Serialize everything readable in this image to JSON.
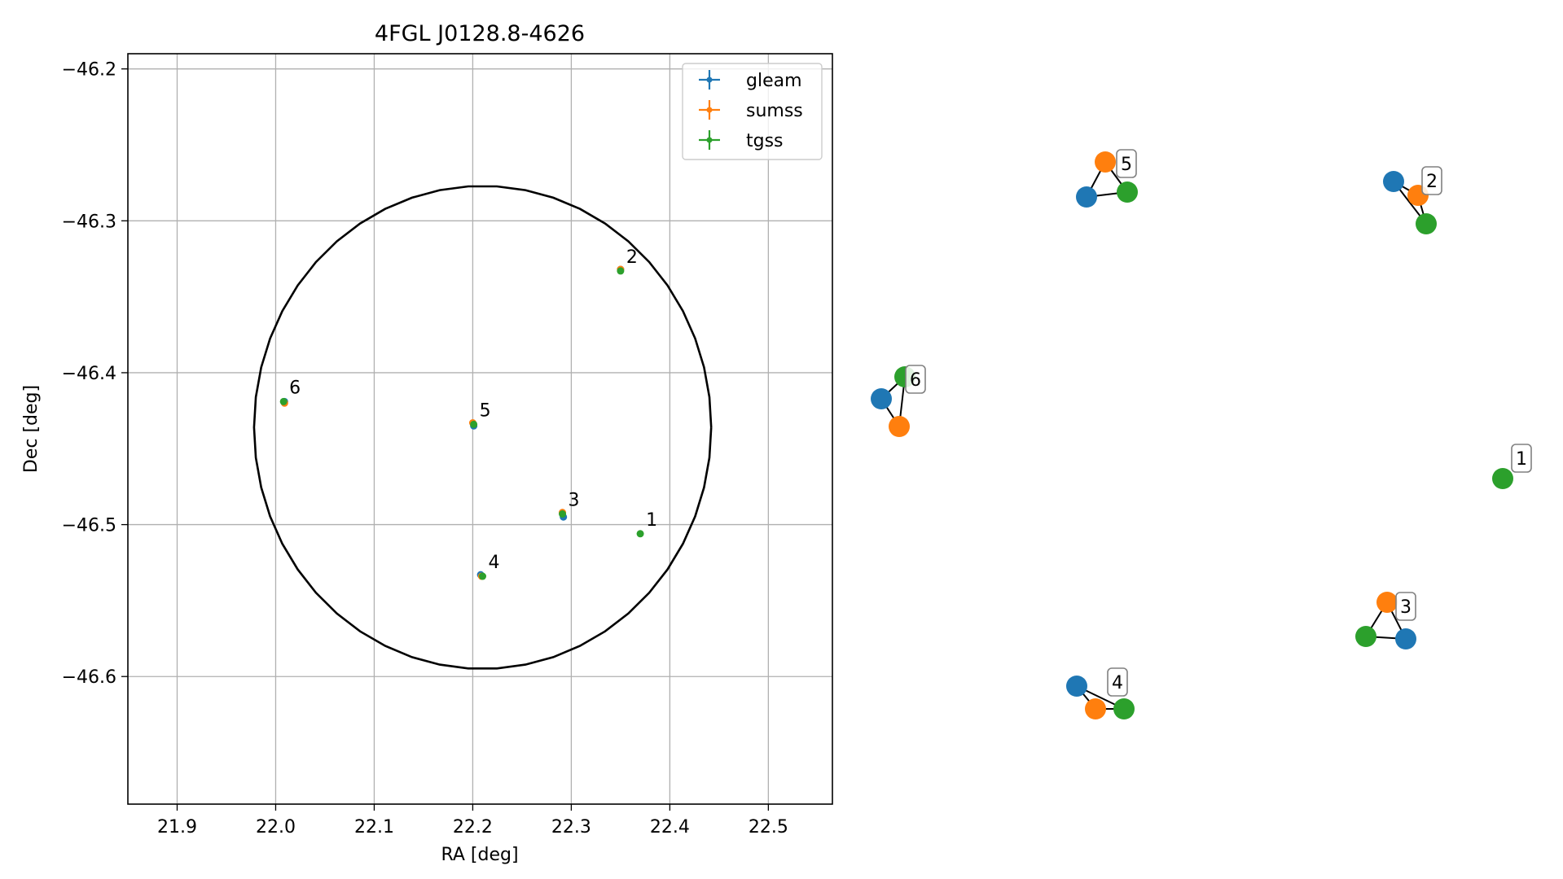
{
  "chart_data": [
    {
      "type": "scatter",
      "title": "4FGL J0128.8-4626",
      "xlabel": "RA [deg]",
      "ylabel": "Dec [deg]",
      "xlim": [
        21.85,
        22.565
      ],
      "ylim": [
        -46.684,
        -46.19
      ],
      "xticks": [
        21.9,
        22.0,
        22.1,
        22.2,
        22.3,
        22.4,
        22.5
      ],
      "xtick_labels": [
        "21.9",
        "22.0",
        "22.1",
        "22.2",
        "22.3",
        "22.4",
        "22.5"
      ],
      "yticks": [
        -46.2,
        -46.3,
        -46.4,
        -46.5,
        -46.6
      ],
      "ytick_labels": [
        "−46.2",
        "−46.3",
        "−46.4",
        "−46.5",
        "−46.6"
      ],
      "grid": true,
      "legend_position": "upper right",
      "series": [
        {
          "name": "gleam",
          "color": "#1f77b4",
          "points": [
            {
              "x": 22.292,
              "y": -46.495
            },
            {
              "x": 22.201,
              "y": -46.435
            },
            {
              "x": 22.35,
              "y": -46.332
            },
            {
              "x": 22.009,
              "y": -46.419
            },
            {
              "x": 22.208,
              "y": -46.533
            }
          ]
        },
        {
          "name": "sumss",
          "color": "#ff7f0e",
          "points": [
            {
              "x": 22.291,
              "y": -46.492
            },
            {
              "x": 22.2,
              "y": -46.433
            },
            {
              "x": 22.35,
              "y": -46.332
            },
            {
              "x": 22.009,
              "y": -46.42
            },
            {
              "x": 22.209,
              "y": -46.534
            }
          ]
        },
        {
          "name": "tgss",
          "color": "#2ca02c",
          "points": [
            {
              "x": 22.37,
              "y": -46.506
            },
            {
              "x": 22.35,
              "y": -46.333
            },
            {
              "x": 22.291,
              "y": -46.493
            },
            {
              "x": 22.21,
              "y": -46.534
            },
            {
              "x": 22.201,
              "y": -46.434
            },
            {
              "x": 22.008,
              "y": -46.419
            }
          ]
        }
      ],
      "circle": {
        "ra_center": 22.21,
        "dec_center": -46.436,
        "ra_radius": 0.232,
        "dec_radius": 0.159
      },
      "annotations": [
        {
          "text": "1",
          "x": 22.37,
          "y": -46.506
        },
        {
          "text": "2",
          "x": 22.35,
          "y": -46.333
        },
        {
          "text": "3",
          "x": 22.291,
          "y": -46.493
        },
        {
          "text": "4",
          "x": 22.21,
          "y": -46.534
        },
        {
          "text": "5",
          "x": 22.201,
          "y": -46.434
        },
        {
          "text": "6",
          "x": 22.008,
          "y": -46.419
        }
      ]
    },
    {
      "type": "network",
      "groups": [
        {
          "label": "1",
          "nodes": [
            {
              "series": "tgss"
            }
          ],
          "edges": []
        },
        {
          "label": "2",
          "nodes": [
            {
              "series": "gleam"
            },
            {
              "series": "sumss"
            },
            {
              "series": "tgss"
            }
          ],
          "edges": [
            [
              0,
              1
            ],
            [
              1,
              2
            ],
            [
              0,
              2
            ]
          ]
        },
        {
          "label": "3",
          "nodes": [
            {
              "series": "sumss"
            },
            {
              "series": "tgss"
            },
            {
              "series": "gleam"
            }
          ],
          "edges": [
            [
              0,
              1
            ],
            [
              0,
              2
            ],
            [
              1,
              2
            ]
          ]
        },
        {
          "label": "4",
          "nodes": [
            {
              "series": "gleam"
            },
            {
              "series": "sumss"
            },
            {
              "series": "tgss"
            }
          ],
          "edges": [
            [
              0,
              1
            ],
            [
              0,
              2
            ],
            [
              1,
              2
            ]
          ]
        },
        {
          "label": "5",
          "nodes": [
            {
              "series": "sumss"
            },
            {
              "series": "gleam"
            },
            {
              "series": "tgss"
            }
          ],
          "edges": [
            [
              0,
              1
            ],
            [
              0,
              2
            ],
            [
              1,
              2
            ]
          ]
        },
        {
          "label": "6",
          "nodes": [
            {
              "series": "gleam"
            },
            {
              "series": "tgss"
            },
            {
              "series": "sumss"
            }
          ],
          "edges": [
            [
              0,
              1
            ],
            [
              0,
              2
            ],
            [
              1,
              2
            ]
          ]
        }
      ]
    }
  ]
}
